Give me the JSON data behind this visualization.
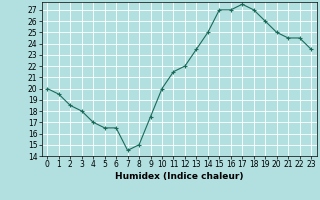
{
  "x": [
    0,
    1,
    2,
    3,
    4,
    5,
    6,
    7,
    8,
    9,
    10,
    11,
    12,
    13,
    14,
    15,
    16,
    17,
    18,
    19,
    20,
    21,
    22,
    23
  ],
  "y": [
    20,
    19.5,
    18.5,
    18,
    17,
    16.5,
    16.5,
    14.5,
    15,
    17.5,
    20,
    21.5,
    22,
    23.5,
    25,
    27,
    27,
    27.5,
    27,
    26,
    25,
    24.5,
    24.5,
    23.5
  ],
  "line_color": "#1a6b5a",
  "marker": "+",
  "marker_size": 3,
  "marker_linewidth": 0.8,
  "xlabel": "Humidex (Indice chaleur)",
  "bg_color": "#b2e0e0",
  "grid_color": "#ffffff",
  "ylim": [
    14,
    27.5
  ],
  "xlim": [
    -0.5,
    23.5
  ],
  "yticks": [
    14,
    15,
    16,
    17,
    18,
    19,
    20,
    21,
    22,
    23,
    24,
    25,
    26,
    27
  ],
  "xticks": [
    0,
    1,
    2,
    3,
    4,
    5,
    6,
    7,
    8,
    9,
    10,
    11,
    12,
    13,
    14,
    15,
    16,
    17,
    18,
    19,
    20,
    21,
    22,
    23
  ],
  "tick_fontsize": 5.5,
  "xlabel_fontsize": 6.5,
  "linewidth": 0.8
}
